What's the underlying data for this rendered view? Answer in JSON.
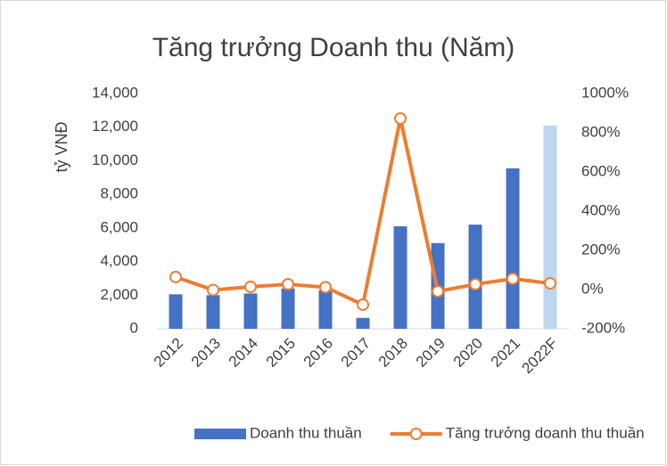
{
  "chart_data": {
    "type": "bar_line",
    "title": "Tăng trưởng Doanh thu (Năm)",
    "y_label": "tỷ VNĐ",
    "categories": [
      "2012",
      "2013",
      "2014",
      "2015",
      "2016",
      "2017",
      "2018",
      "2019",
      "2020",
      "2021",
      "2022F"
    ],
    "series": [
      {
        "name": "Doanh thu thuần",
        "type": "bar",
        "color": "#4472c4",
        "colors": [
          "#4472c4",
          "#4472c4",
          "#4472c4",
          "#4472c4",
          "#4472c4",
          "#4472c4",
          "#4472c4",
          "#4472c4",
          "#4472c4",
          "#4472c4",
          "#bdd7ee"
        ],
        "values": [
          2050,
          2000,
          2100,
          2400,
          2300,
          650,
          6100,
          5100,
          6200,
          9550,
          12100
        ]
      },
      {
        "name": "Tăng trưởng doanh thu thuần",
        "type": "line",
        "axis": "y2",
        "color": "#ed7d31",
        "values": [
          64,
          -2,
          14,
          27,
          12,
          -77,
          873,
          -9,
          27,
          55,
          32
        ]
      }
    ],
    "ylim": [
      0,
      14000
    ],
    "yticks": [
      0,
      {
        "value": 2000,
        "label": "2,000"
      },
      {
        "value": 4000,
        "label": "4,000"
      },
      {
        "value": 6000,
        "label": "6,000"
      },
      {
        "value": 8000,
        "label": "8,000"
      },
      {
        "value": 10000,
        "label": "10,000"
      },
      {
        "value": 12000,
        "label": "12,000"
      },
      {
        "value": 14000,
        "label": "14,000"
      }
    ],
    "y2lim": [
      -200,
      1000
    ],
    "y2ticks": [
      {
        "value": -200,
        "label": "-200%"
      },
      {
        "value": 0,
        "label": "0%"
      },
      {
        "value": 200,
        "label": "200%"
      },
      {
        "value": 400,
        "label": "400%"
      },
      {
        "value": 600,
        "label": "600%"
      },
      {
        "value": 800,
        "label": "800%"
      },
      {
        "value": 1000,
        "label": "1000%"
      }
    ],
    "grid": false,
    "legend": "bottom"
  }
}
